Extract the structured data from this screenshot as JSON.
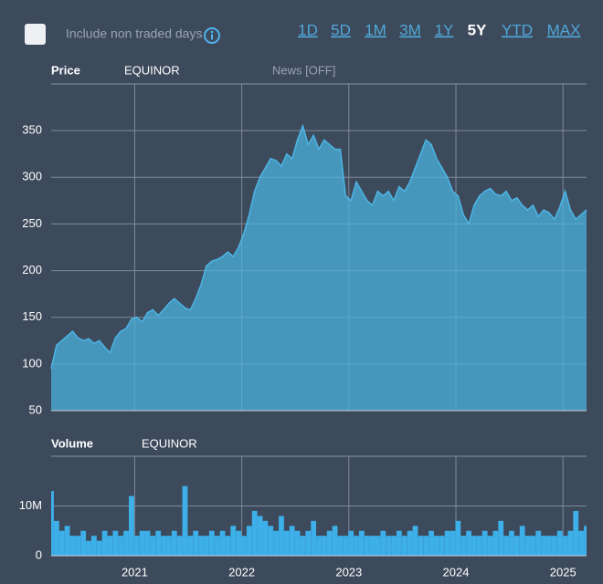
{
  "controls": {
    "checkbox_label": "Include non traded days",
    "ranges": [
      "1D",
      "5D",
      "1M",
      "3M",
      "1Y",
      "5Y",
      "YTD",
      "MAX"
    ],
    "active_index": 5
  },
  "chart_data": [
    {
      "type": "area",
      "title": "Price",
      "annotation": "News [OFF]",
      "x": [
        2020.22,
        2020.27,
        2020.32,
        2020.37,
        2020.42,
        2020.47,
        2020.52,
        2020.57,
        2020.62,
        2020.67,
        2020.72,
        2020.77,
        2020.82,
        2020.87,
        2020.92,
        2020.97,
        2021.02,
        2021.07,
        2021.12,
        2021.17,
        2021.22,
        2021.27,
        2021.32,
        2021.37,
        2021.42,
        2021.47,
        2021.52,
        2021.57,
        2021.62,
        2021.67,
        2021.72,
        2021.77,
        2021.82,
        2021.87,
        2021.92,
        2021.97,
        2022.02,
        2022.07,
        2022.12,
        2022.17,
        2022.22,
        2022.27,
        2022.32,
        2022.37,
        2022.42,
        2022.47,
        2022.52,
        2022.57,
        2022.62,
        2022.67,
        2022.72,
        2022.77,
        2022.82,
        2022.87,
        2022.92,
        2022.97,
        2023.02,
        2023.07,
        2023.12,
        2023.17,
        2023.22,
        2023.27,
        2023.32,
        2023.37,
        2023.42,
        2023.47,
        2023.52,
        2023.57,
        2023.62,
        2023.67,
        2023.72,
        2023.77,
        2023.82,
        2023.87,
        2023.92,
        2023.97,
        2024.02,
        2024.07,
        2024.12,
        2024.17,
        2024.22,
        2024.27,
        2024.32,
        2024.37,
        2024.42,
        2024.47,
        2024.52,
        2024.57,
        2024.62,
        2024.67,
        2024.72,
        2024.77,
        2024.82,
        2024.87,
        2024.92,
        2024.97,
        2025.02,
        2025.07,
        2025.12,
        2025.17,
        2025.22
      ],
      "series": [
        {
          "name": "EQUINOR",
          "color": "#4cb6e6",
          "values": [
            95,
            120,
            125,
            130,
            135,
            128,
            125,
            127,
            122,
            125,
            118,
            112,
            128,
            135,
            138,
            148,
            150,
            145,
            155,
            158,
            152,
            158,
            165,
            170,
            165,
            160,
            158,
            170,
            185,
            205,
            210,
            212,
            215,
            220,
            215,
            225,
            240,
            260,
            285,
            300,
            310,
            320,
            318,
            312,
            325,
            320,
            340,
            355,
            335,
            345,
            330,
            340,
            335,
            330,
            330,
            280,
            275,
            295,
            285,
            275,
            270,
            285,
            280,
            285,
            275,
            290,
            285,
            295,
            310,
            325,
            340,
            335,
            320,
            310,
            300,
            285,
            280,
            260,
            250,
            270,
            280,
            285,
            288,
            282,
            280,
            285,
            275,
            278,
            270,
            265,
            270,
            258,
            265,
            262,
            255,
            268,
            285,
            265,
            255,
            260,
            265
          ]
        }
      ],
      "xlim": [
        2020.22,
        2025.22
      ],
      "xticks": [
        2021,
        2022,
        2023,
        2024,
        2025
      ],
      "ylim": [
        50,
        400
      ],
      "yticks": [
        50,
        100,
        150,
        200,
        250,
        300,
        350
      ],
      "grid": true
    },
    {
      "type": "bar",
      "title": "Volume",
      "x": [
        2020.22,
        2020.27,
        2020.32,
        2020.37,
        2020.42,
        2020.47,
        2020.52,
        2020.57,
        2020.62,
        2020.67,
        2020.72,
        2020.77,
        2020.82,
        2020.87,
        2020.92,
        2020.97,
        2021.02,
        2021.07,
        2021.12,
        2021.17,
        2021.22,
        2021.27,
        2021.32,
        2021.37,
        2021.42,
        2021.47,
        2021.52,
        2021.57,
        2021.62,
        2021.67,
        2021.72,
        2021.77,
        2021.82,
        2021.87,
        2021.92,
        2021.97,
        2022.02,
        2022.07,
        2022.12,
        2022.17,
        2022.22,
        2022.27,
        2022.32,
        2022.37,
        2022.42,
        2022.47,
        2022.52,
        2022.57,
        2022.62,
        2022.67,
        2022.72,
        2022.77,
        2022.82,
        2022.87,
        2022.92,
        2022.97,
        2023.02,
        2023.07,
        2023.12,
        2023.17,
        2023.22,
        2023.27,
        2023.32,
        2023.37,
        2023.42,
        2023.47,
        2023.52,
        2023.57,
        2023.62,
        2023.67,
        2023.72,
        2023.77,
        2023.82,
        2023.87,
        2023.92,
        2023.97,
        2024.02,
        2024.07,
        2024.12,
        2024.17,
        2024.22,
        2024.27,
        2024.32,
        2024.37,
        2024.42,
        2024.47,
        2024.52,
        2024.57,
        2024.62,
        2024.67,
        2024.72,
        2024.77,
        2024.82,
        2024.87,
        2024.92,
        2024.97,
        2025.02,
        2025.07,
        2025.12,
        2025.17,
        2025.22
      ],
      "series": [
        {
          "name": "EQUINOR",
          "color": "#3db0ea",
          "values": [
            13000000,
            7000000,
            5000000,
            6000000,
            4000000,
            4000000,
            5000000,
            3000000,
            4000000,
            3000000,
            5000000,
            4000000,
            5000000,
            4000000,
            5000000,
            12000000,
            4000000,
            5000000,
            5000000,
            4000000,
            5000000,
            4000000,
            4000000,
            5000000,
            4000000,
            14000000,
            4000000,
            5000000,
            4000000,
            4000000,
            5000000,
            4000000,
            5000000,
            4000000,
            6000000,
            5000000,
            4000000,
            6000000,
            9000000,
            8000000,
            7000000,
            6000000,
            5000000,
            8000000,
            5000000,
            6000000,
            5000000,
            4000000,
            5000000,
            7000000,
            4000000,
            4000000,
            5000000,
            6000000,
            4000000,
            4000000,
            5000000,
            4000000,
            5000000,
            4000000,
            4000000,
            4000000,
            5000000,
            4000000,
            4000000,
            5000000,
            4000000,
            5000000,
            6000000,
            4000000,
            4000000,
            5000000,
            4000000,
            4000000,
            5000000,
            5000000,
            7000000,
            4000000,
            5000000,
            4000000,
            4000000,
            5000000,
            4000000,
            5000000,
            7000000,
            4000000,
            5000000,
            4000000,
            6000000,
            4000000,
            4000000,
            5000000,
            4000000,
            4000000,
            4000000,
            5000000,
            4000000,
            5000000,
            9000000,
            5000000,
            6000000
          ]
        }
      ],
      "xlim": [
        2020.22,
        2025.22
      ],
      "xticks": [
        2021,
        2022,
        2023,
        2024,
        2025
      ],
      "ylim": [
        0,
        20000000
      ],
      "yticks": [
        0,
        {
          "value": 10000000,
          "label": "10M"
        }
      ],
      "grid": true
    }
  ]
}
